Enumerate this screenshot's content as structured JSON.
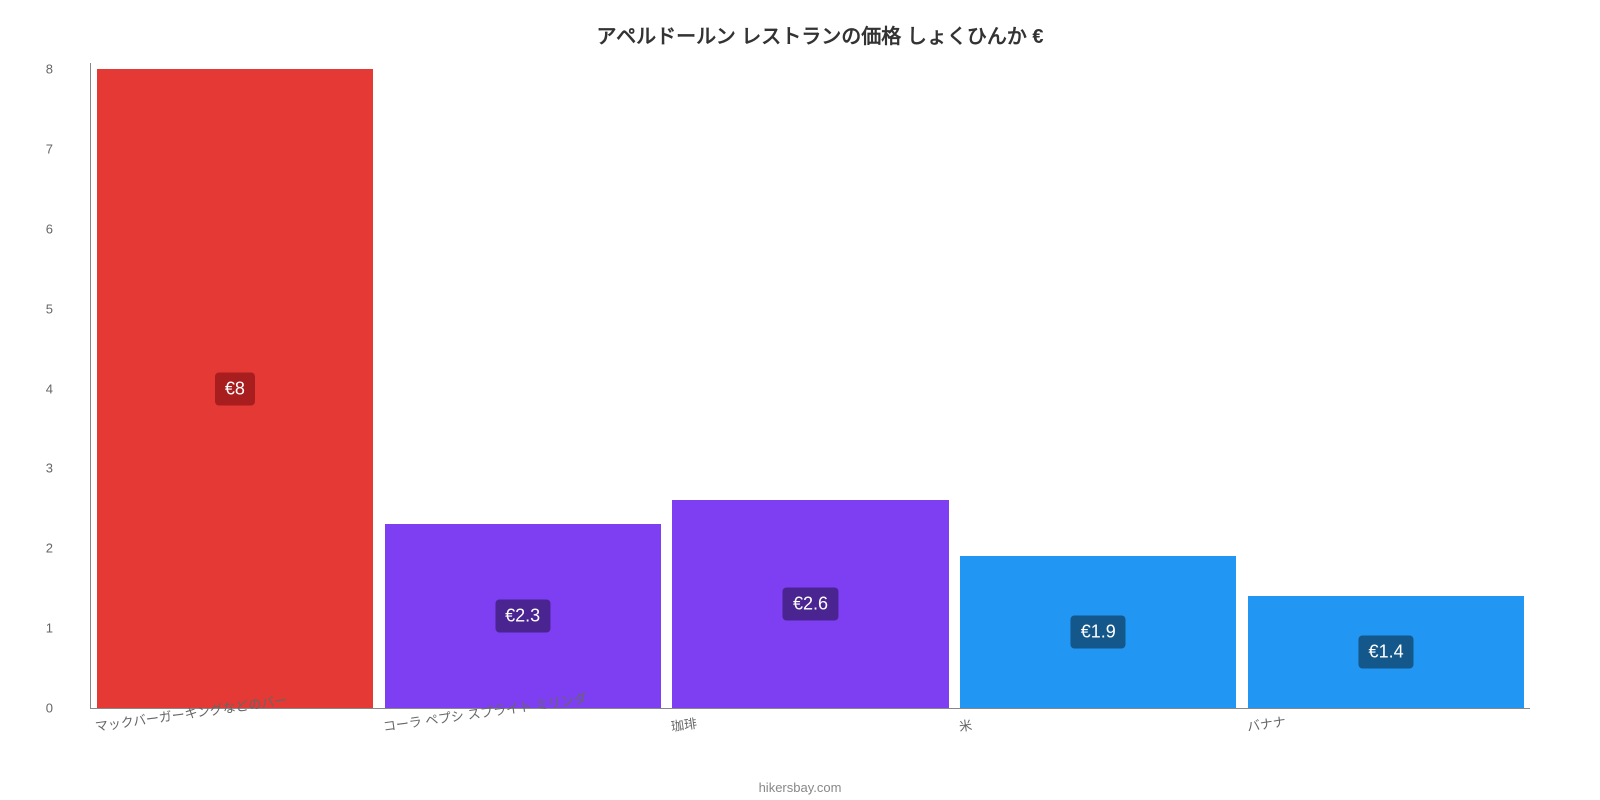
{
  "chart": {
    "type": "bar",
    "title": "アペルドールン レストランの価格 しょくひんか €",
    "title_fontsize": 20,
    "title_color": "#333333",
    "background_color": "#ffffff",
    "axis_color": "#888888",
    "label_color": "#666666",
    "label_fontsize": 13,
    "ylim": [
      0,
      8
    ],
    "ytick_step": 1,
    "yticks": [
      0,
      1,
      2,
      3,
      4,
      5,
      6,
      7,
      8
    ],
    "bar_width": 0.96,
    "categories": [
      "マックバーガーキングなどのバー",
      "コーラ ペプシ スプライト ミリンダ",
      "珈琲",
      "米",
      "バナナ"
    ],
    "values": [
      8,
      2.3,
      2.6,
      1.9,
      1.4
    ],
    "value_labels": [
      "€8",
      "€2.3",
      "€2.6",
      "€1.9",
      "€1.4"
    ],
    "bar_colors": [
      "#e53935",
      "#7e3ff2",
      "#7e3ff2",
      "#2196f3",
      "#2196f3"
    ],
    "label_bg_colors": [
      "#a81e1e",
      "#4a2591",
      "#4a2591",
      "#14578a",
      "#14578a"
    ],
    "label_fontsize_values": 18,
    "label_text_color": "#ffffff"
  },
  "footer": "hikersbay.com"
}
